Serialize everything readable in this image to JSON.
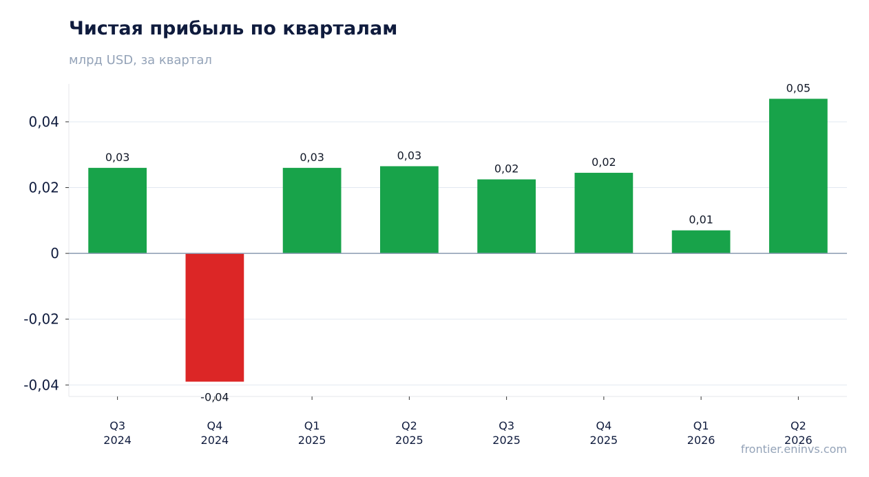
{
  "header": {
    "title": "Чистая прибыль по кварталам",
    "subtitle": "млрд USD, за квартал"
  },
  "footer": {
    "source": "frontier.eninvs.com"
  },
  "colors": {
    "positive": "#18a34a",
    "negative": "#dc2626"
  },
  "chart_data": {
    "type": "bar",
    "title": "Чистая прибыль по кварталам",
    "subtitle": "млрд USD, за квартал",
    "categories": [
      [
        "Q3",
        "2024"
      ],
      [
        "Q4",
        "2024"
      ],
      [
        "Q1",
        "2025"
      ],
      [
        "Q2",
        "2025"
      ],
      [
        "Q3",
        "2025"
      ],
      [
        "Q4",
        "2025"
      ],
      [
        "Q1",
        "2026"
      ],
      [
        "Q2",
        "2026"
      ]
    ],
    "values": [
      0.026,
      -0.039,
      0.026,
      0.0265,
      0.0225,
      0.0245,
      0.007,
      0.047
    ],
    "data_labels": [
      "0,03",
      "-0,04",
      "0,03",
      "0,03",
      "0,02",
      "0,02",
      "0,01",
      "0,05"
    ],
    "yticks": [
      0.04,
      0.02,
      0,
      -0.02,
      -0.04
    ],
    "ytick_labels": [
      "0,04",
      "0,02",
      "0",
      "-0,02",
      "-0,04"
    ],
    "ylim": [
      -0.0435,
      0.0515
    ],
    "grid": true
  }
}
